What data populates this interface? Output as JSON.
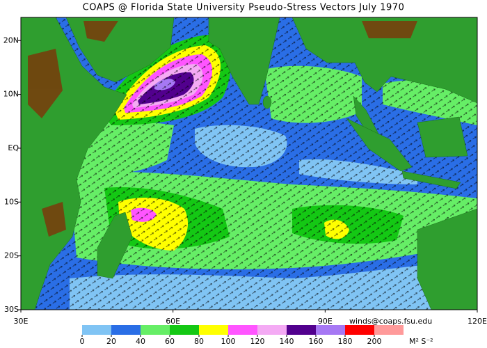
{
  "chart_data": {
    "type": "map",
    "title": "COAPS @ Florida State University Pseudo-Stress Vectors  July 1970",
    "xlim": [
      30,
      120
    ],
    "ylim": [
      -30,
      24.3
    ],
    "xticks": [
      {
        "value": 30,
        "label": "30E"
      },
      {
        "value": 60,
        "label": "60E"
      },
      {
        "value": 90,
        "label": "90E"
      },
      {
        "value": 120,
        "label": "120E"
      }
    ],
    "yticks": [
      {
        "value": 20,
        "label": "20N"
      },
      {
        "value": 10,
        "label": "10N"
      },
      {
        "value": 0,
        "label": "EQ"
      },
      {
        "value": -10,
        "label": "10S"
      },
      {
        "value": -20,
        "label": "20S"
      },
      {
        "value": -30,
        "label": "30S"
      }
    ],
    "colorbar": {
      "levels": [
        0,
        20,
        40,
        60,
        80,
        100,
        120,
        140,
        160,
        180,
        200
      ],
      "colors": [
        "#80c4f4",
        "#2a6ee6",
        "#66ee66",
        "#14c814",
        "#ffff00",
        "#ff55ff",
        "#f4aaf4",
        "#52008e",
        "#a678f4",
        "#ff0000",
        "#ff9a9a"
      ],
      "units": "M² S⁻²"
    },
    "credit": "winds@coaps.fsu.edu"
  }
}
